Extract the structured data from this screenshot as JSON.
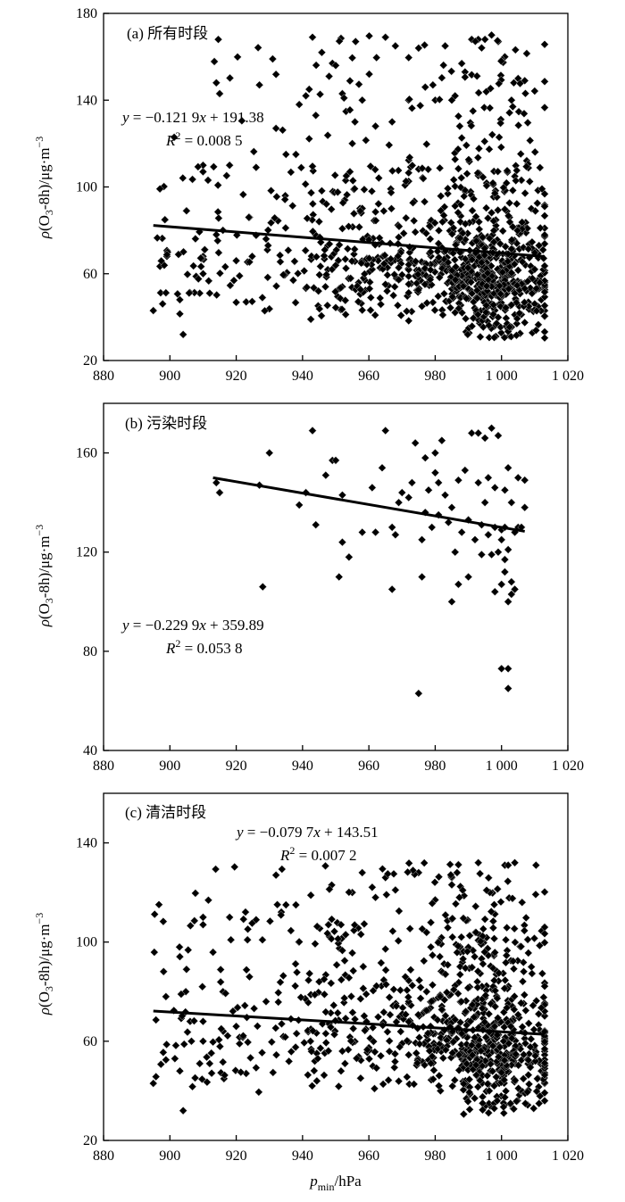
{
  "chart_data": [
    {
      "type": "scatter",
      "panel_label": "(a) 所有时段",
      "ylabel": {
        "rho": "ρ",
        "main": "(O",
        "sub": "3",
        "mid": "-8h)/μg·m",
        "sup": "−3"
      },
      "xlim": [
        880,
        1020
      ],
      "ylim": [
        20,
        180
      ],
      "xticks": [
        880,
        900,
        920,
        940,
        960,
        980,
        1000,
        1020
      ],
      "xtick_labels": [
        "880",
        "900",
        "920",
        "940",
        "960",
        "980",
        "1 000",
        "1 020"
      ],
      "yticks": [
        20,
        60,
        100,
        140,
        180
      ],
      "ytick_labels": [
        "20",
        "60",
        "100",
        "140",
        "180"
      ],
      "equation": {
        "y": "y",
        "rest": " = −0.121 9",
        "x": "x",
        "tail": " + 191.38"
      },
      "r2": {
        "r": "R",
        "sup": "2",
        "tail": " = 0.008 5"
      },
      "trend": {
        "slope": -0.1219,
        "intercept": 191.38,
        "x_range": [
          895,
          1013
        ]
      },
      "cloud": {
        "n": 1050,
        "seed": 11,
        "x_range": [
          895,
          1013
        ],
        "y_range": [
          25,
          170
        ],
        "mode": "all"
      },
      "points": [
        [
          895,
          43
        ],
        [
          903,
          48
        ],
        [
          904,
          32
        ],
        [
          905,
          89
        ],
        [
          909,
          51
        ],
        [
          910,
          107
        ],
        [
          910,
          110
        ],
        [
          910,
          68
        ],
        [
          910,
          60
        ],
        [
          912,
          51
        ],
        [
          914,
          148
        ],
        [
          915,
          143
        ],
        [
          916,
          80
        ],
        [
          918,
          110
        ],
        [
          920,
          66
        ],
        [
          921,
          59
        ],
        [
          923,
          47
        ],
        [
          924,
          86
        ],
        [
          926,
          109
        ],
        [
          927,
          147
        ],
        [
          929,
          76
        ],
        [
          931,
          159
        ],
        [
          932,
          127
        ],
        [
          935,
          115
        ],
        [
          938,
          115
        ],
        [
          939,
          138
        ],
        [
          941,
          142
        ],
        [
          942,
          145
        ],
        [
          943,
          169
        ],
        [
          944,
          133
        ],
        [
          945,
          84
        ],
        [
          948,
          151
        ],
        [
          949,
          157
        ],
        [
          950,
          156
        ],
        [
          952,
          143
        ],
        [
          953,
          103
        ],
        [
          955,
          120
        ],
        [
          958,
          140
        ],
        [
          962,
          128
        ],
        [
          965,
          169
        ],
        [
          967,
          130
        ],
        [
          968,
          165
        ],
        [
          972,
          140
        ],
        [
          975,
          164
        ],
        [
          977,
          146
        ],
        [
          980,
          140
        ],
        [
          983,
          165
        ],
        [
          985,
          140
        ],
        [
          989,
          153
        ],
        [
          991,
          168
        ],
        [
          993,
          168
        ],
        [
          995,
          168
        ],
        [
          997,
          170
        ],
        [
          999,
          167
        ],
        [
          1001,
          160
        ],
        [
          1003,
          140
        ],
        [
          1005,
          150
        ],
        [
          1007,
          149
        ],
        [
          1009,
          90
        ],
        [
          1011,
          45
        ],
        [
          1012,
          48
        ],
        [
          1013,
          43
        ]
      ]
    },
    {
      "type": "scatter",
      "panel_label": "(b) 污染时段",
      "ylabel": {
        "rho": "ρ",
        "main": "(O",
        "sub": "3",
        "mid": "-8h)/μg·m",
        "sup": "−3"
      },
      "xlim": [
        880,
        1020
      ],
      "ylim": [
        40,
        180
      ],
      "xticks": [
        880,
        900,
        920,
        940,
        960,
        980,
        1000,
        1020
      ],
      "xtick_labels": [
        "880",
        "900",
        "920",
        "940",
        "960",
        "980",
        "1 000",
        "1 020"
      ],
      "yticks": [
        40,
        80,
        120,
        160
      ],
      "ytick_labels": [
        "40",
        "80",
        "120",
        "160"
      ],
      "equation": {
        "y": "y",
        "rest": " = −0.229 9",
        "x": "x",
        "tail": " + 359.89"
      },
      "r2": {
        "r": "R",
        "sup": "2",
        "tail": " = 0.053 8"
      },
      "trend": {
        "slope": -0.2299,
        "intercept": 359.89,
        "x_range": [
          913,
          1007
        ]
      },
      "points": [
        [
          914,
          148
        ],
        [
          915,
          144
        ],
        [
          927,
          147
        ],
        [
          928,
          106
        ],
        [
          930,
          160
        ],
        [
          939,
          139
        ],
        [
          941,
          144
        ],
        [
          943,
          169
        ],
        [
          944,
          131
        ],
        [
          947,
          151
        ],
        [
          949,
          157
        ],
        [
          950,
          157
        ],
        [
          951,
          110
        ],
        [
          952,
          124
        ],
        [
          952,
          143
        ],
        [
          954,
          118
        ],
        [
          958,
          128
        ],
        [
          961,
          146
        ],
        [
          962,
          128
        ],
        [
          964,
          154
        ],
        [
          965,
          169
        ],
        [
          967,
          105
        ],
        [
          967,
          130
        ],
        [
          968,
          127
        ],
        [
          969,
          140
        ],
        [
          970,
          144
        ],
        [
          972,
          142
        ],
        [
          973,
          148
        ],
        [
          974,
          164
        ],
        [
          975,
          63
        ],
        [
          976,
          110
        ],
        [
          976,
          125
        ],
        [
          977,
          158
        ],
        [
          977,
          136
        ],
        [
          978,
          145
        ],
        [
          979,
          130
        ],
        [
          980,
          152
        ],
        [
          980,
          160
        ],
        [
          981,
          148
        ],
        [
          981,
          135
        ],
        [
          982,
          165
        ],
        [
          983,
          143
        ],
        [
          984,
          132
        ],
        [
          985,
          100
        ],
        [
          985,
          138
        ],
        [
          986,
          120
        ],
        [
          987,
          149
        ],
        [
          987,
          107
        ],
        [
          988,
          128
        ],
        [
          989,
          153
        ],
        [
          990,
          110
        ],
        [
          990,
          133
        ],
        [
          991,
          168
        ],
        [
          992,
          125
        ],
        [
          993,
          168
        ],
        [
          993,
          148
        ],
        [
          994,
          131
        ],
        [
          994,
          119
        ],
        [
          995,
          166
        ],
        [
          995,
          140
        ],
        [
          996,
          127
        ],
        [
          996,
          150
        ],
        [
          997,
          170
        ],
        [
          997,
          119
        ],
        [
          998,
          104
        ],
        [
          998,
          130
        ],
        [
          998,
          146
        ],
        [
          999,
          167
        ],
        [
          999,
          120
        ],
        [
          1000,
          73
        ],
        [
          1000,
          107
        ],
        [
          1000,
          129
        ],
        [
          1000,
          125
        ],
        [
          1001,
          117
        ],
        [
          1001,
          145
        ],
        [
          1001,
          130
        ],
        [
          1002,
          65
        ],
        [
          1002,
          73
        ],
        [
          1002,
          100
        ],
        [
          1002,
          154
        ],
        [
          1002,
          121
        ],
        [
          1003,
          103
        ],
        [
          1003,
          140
        ],
        [
          1003,
          108
        ],
        [
          1004,
          105
        ],
        [
          1004,
          128
        ],
        [
          1005,
          150
        ],
        [
          1005,
          130
        ],
        [
          1006,
          130
        ],
        [
          1007,
          149
        ],
        [
          1007,
          138
        ],
        [
          1001,
          112
        ]
      ]
    },
    {
      "type": "scatter",
      "panel_label": "(c) 清洁时段",
      "ylabel": {
        "rho": "ρ",
        "main": "(O",
        "sub": "3",
        "mid": "-8h)/μg·m",
        "sup": "−3"
      },
      "xlabel": {
        "p": "p",
        "sub": "min",
        "tail": "/hPa"
      },
      "xlim": [
        880,
        1020
      ],
      "ylim": [
        20,
        160
      ],
      "xticks": [
        880,
        900,
        920,
        940,
        960,
        980,
        1000,
        1020
      ],
      "xtick_labels": [
        "880",
        "900",
        "920",
        "940",
        "960",
        "980",
        "1 000",
        "1 020"
      ],
      "yticks": [
        20,
        60,
        100,
        140
      ],
      "ytick_labels": [
        "20",
        "60",
        "100",
        "140"
      ],
      "equation": {
        "y": "y",
        "rest": " = −0.079 7",
        "x": "x",
        "tail": " + 143.51"
      },
      "r2": {
        "r": "R",
        "sup": "2",
        "tail": " = 0.007 2"
      },
      "trend": {
        "slope": -0.0797,
        "intercept": 143.51,
        "x_range": [
          895,
          1013
        ]
      },
      "cloud": {
        "n": 960,
        "seed": 29,
        "x_range": [
          895,
          1013
        ],
        "y_range": [
          25,
          132
        ],
        "mode": "clean"
      },
      "points": [
        [
          895,
          43
        ],
        [
          903,
          48
        ],
        [
          904,
          32
        ],
        [
          905,
          89
        ],
        [
          909,
          51
        ],
        [
          910,
          107
        ],
        [
          910,
          110
        ],
        [
          910,
          68
        ],
        [
          910,
          60
        ],
        [
          912,
          51
        ],
        [
          916,
          80
        ],
        [
          918,
          110
        ],
        [
          920,
          66
        ],
        [
          921,
          59
        ],
        [
          923,
          47
        ],
        [
          924,
          86
        ],
        [
          926,
          109
        ],
        [
          929,
          76
        ],
        [
          932,
          127
        ],
        [
          935,
          115
        ],
        [
          938,
          115
        ],
        [
          945,
          84
        ],
        [
          953,
          103
        ],
        [
          955,
          120
        ],
        [
          958,
          128
        ],
        [
          962,
          118
        ],
        [
          965,
          126
        ],
        [
          968,
          121
        ],
        [
          975,
          128
        ],
        [
          980,
          117
        ],
        [
          985,
          126
        ],
        [
          993,
          132
        ],
        [
          1001,
          131
        ],
        [
          1002,
          131
        ],
        [
          1004,
          132
        ],
        [
          1009,
          90
        ],
        [
          1011,
          45
        ],
        [
          1012,
          48
        ],
        [
          1013,
          43
        ]
      ]
    }
  ]
}
